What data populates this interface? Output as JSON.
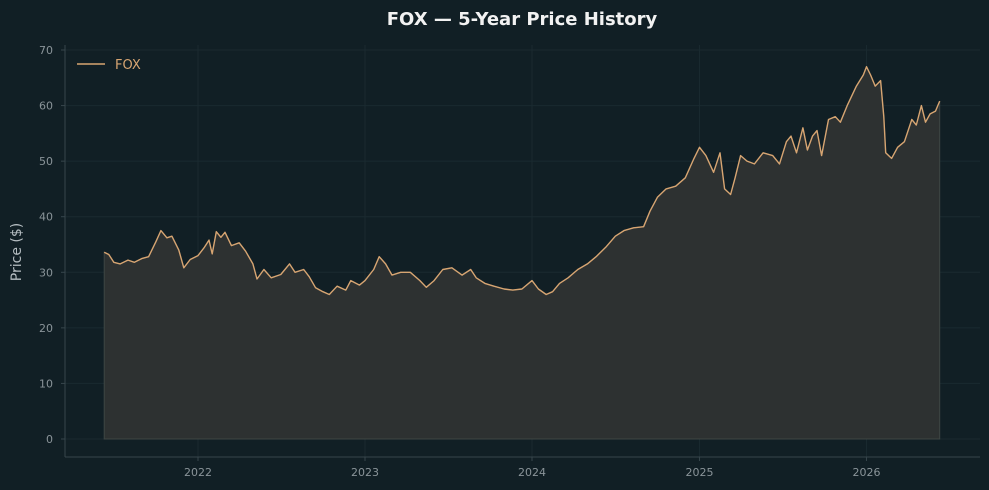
{
  "chart_data": {
    "type": "line",
    "title": "FOX — 5-Year Price History",
    "xlabel": "",
    "ylabel": "Price ($)",
    "ylim": [
      0,
      70
    ],
    "yticks": [
      0,
      10,
      20,
      30,
      40,
      50,
      60,
      70
    ],
    "xticks": [
      "2022",
      "2023",
      "2024",
      "2025",
      "2026"
    ],
    "grid": true,
    "legend_position": "top-left",
    "area_fill": true,
    "series": [
      {
        "name": "FOX",
        "color": "#d7a572",
        "points": [
          [
            "2021-06-10",
            33.6
          ],
          [
            "2021-06-20",
            33.2
          ],
          [
            "2021-07-01",
            31.8
          ],
          [
            "2021-07-15",
            31.5
          ],
          [
            "2021-08-01",
            32.2
          ],
          [
            "2021-08-15",
            31.8
          ],
          [
            "2021-09-01",
            32.5
          ],
          [
            "2021-09-15",
            32.8
          ],
          [
            "2021-10-01",
            35.5
          ],
          [
            "2021-10-12",
            37.5
          ],
          [
            "2021-10-25",
            36.2
          ],
          [
            "2021-11-05",
            36.5
          ],
          [
            "2021-11-20",
            34.0
          ],
          [
            "2021-12-01",
            30.8
          ],
          [
            "2021-12-15",
            32.3
          ],
          [
            "2022-01-01",
            33.0
          ],
          [
            "2022-01-15",
            34.5
          ],
          [
            "2022-01-25",
            35.8
          ],
          [
            "2022-02-01",
            33.3
          ],
          [
            "2022-02-10",
            37.3
          ],
          [
            "2022-02-20",
            36.3
          ],
          [
            "2022-03-01",
            37.2
          ],
          [
            "2022-03-15",
            34.8
          ],
          [
            "2022-04-01",
            35.3
          ],
          [
            "2022-04-15",
            33.8
          ],
          [
            "2022-05-01",
            31.5
          ],
          [
            "2022-05-10",
            28.8
          ],
          [
            "2022-05-25",
            30.5
          ],
          [
            "2022-06-10",
            29.0
          ],
          [
            "2022-07-01",
            29.6
          ],
          [
            "2022-07-20",
            31.5
          ],
          [
            "2022-08-01",
            30.0
          ],
          [
            "2022-08-20",
            30.5
          ],
          [
            "2022-09-01",
            29.2
          ],
          [
            "2022-09-15",
            27.2
          ],
          [
            "2022-10-01",
            26.5
          ],
          [
            "2022-10-15",
            26.0
          ],
          [
            "2022-11-01",
            27.5
          ],
          [
            "2022-11-20",
            26.8
          ],
          [
            "2022-12-01",
            28.5
          ],
          [
            "2022-12-20",
            27.7
          ],
          [
            "2023-01-01",
            28.5
          ],
          [
            "2023-01-20",
            30.5
          ],
          [
            "2023-02-01",
            32.8
          ],
          [
            "2023-02-15",
            31.5
          ],
          [
            "2023-03-01",
            29.5
          ],
          [
            "2023-03-20",
            30.0
          ],
          [
            "2023-04-10",
            30.0
          ],
          [
            "2023-05-01",
            28.5
          ],
          [
            "2023-05-15",
            27.3
          ],
          [
            "2023-06-01",
            28.5
          ],
          [
            "2023-06-20",
            30.5
          ],
          [
            "2023-07-10",
            30.8
          ],
          [
            "2023-08-01",
            29.5
          ],
          [
            "2023-08-20",
            30.5
          ],
          [
            "2023-09-01",
            29.0
          ],
          [
            "2023-09-20",
            28.0
          ],
          [
            "2023-10-10",
            27.5
          ],
          [
            "2023-11-01",
            27.0
          ],
          [
            "2023-11-20",
            26.8
          ],
          [
            "2023-12-10",
            27.0
          ],
          [
            "2024-01-01",
            28.5
          ],
          [
            "2024-01-15",
            27.0
          ],
          [
            "2024-02-01",
            26.0
          ],
          [
            "2024-02-15",
            26.5
          ],
          [
            "2024-03-01",
            28.0
          ],
          [
            "2024-03-20",
            29.0
          ],
          [
            "2024-04-10",
            30.5
          ],
          [
            "2024-05-01",
            31.5
          ],
          [
            "2024-05-20",
            32.8
          ],
          [
            "2024-06-10",
            34.5
          ],
          [
            "2024-07-01",
            36.5
          ],
          [
            "2024-07-20",
            37.5
          ],
          [
            "2024-08-10",
            38.0
          ],
          [
            "2024-09-01",
            38.2
          ],
          [
            "2024-09-15",
            41.0
          ],
          [
            "2024-10-01",
            43.5
          ],
          [
            "2024-10-20",
            45.0
          ],
          [
            "2024-11-10",
            45.5
          ],
          [
            "2024-12-01",
            47.0
          ],
          [
            "2024-12-20",
            50.5
          ],
          [
            "2025-01-01",
            52.5
          ],
          [
            "2025-01-15",
            51.0
          ],
          [
            "2025-02-01",
            48.0
          ],
          [
            "2025-02-15",
            51.5
          ],
          [
            "2025-02-25",
            45.0
          ],
          [
            "2025-03-10",
            44.0
          ],
          [
            "2025-03-20",
            47.0
          ],
          [
            "2025-04-01",
            51.0
          ],
          [
            "2025-04-15",
            50.0
          ],
          [
            "2025-05-01",
            49.5
          ],
          [
            "2025-05-20",
            51.5
          ],
          [
            "2025-06-10",
            51.0
          ],
          [
            "2025-06-25",
            49.5
          ],
          [
            "2025-07-10",
            53.5
          ],
          [
            "2025-07-20",
            54.5
          ],
          [
            "2025-08-01",
            51.5
          ],
          [
            "2025-08-15",
            56.0
          ],
          [
            "2025-08-25",
            52.0
          ],
          [
            "2025-09-05",
            54.5
          ],
          [
            "2025-09-15",
            55.5
          ],
          [
            "2025-09-25",
            51.0
          ],
          [
            "2025-10-10",
            57.5
          ],
          [
            "2025-10-25",
            58.0
          ],
          [
            "2025-11-05",
            57.0
          ],
          [
            "2025-11-20",
            60.0
          ],
          [
            "2025-12-10",
            63.5
          ],
          [
            "2025-12-25",
            65.5
          ],
          [
            "2026-01-01",
            67.0
          ],
          [
            "2026-01-10",
            65.5
          ],
          [
            "2026-01-20",
            63.5
          ],
          [
            "2026-02-01",
            64.5
          ],
          [
            "2026-02-08",
            58.0
          ],
          [
            "2026-02-12",
            51.5
          ],
          [
            "2026-02-25",
            50.5
          ],
          [
            "2026-03-10",
            52.5
          ],
          [
            "2026-03-25",
            53.5
          ],
          [
            "2026-04-10",
            57.5
          ],
          [
            "2026-04-20",
            56.5
          ],
          [
            "2026-05-01",
            60.0
          ],
          [
            "2026-05-10",
            57.0
          ],
          [
            "2026-05-20",
            58.5
          ],
          [
            "2026-06-01",
            59.0
          ],
          [
            "2026-06-10",
            60.8
          ]
        ]
      }
    ]
  }
}
